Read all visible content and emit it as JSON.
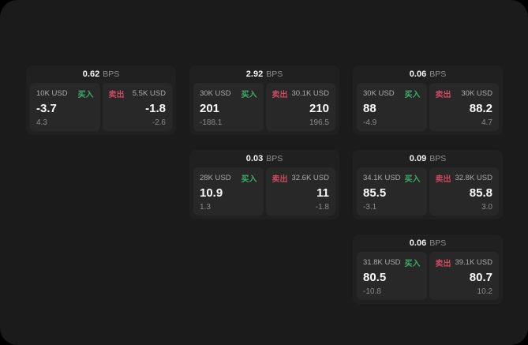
{
  "labels": {
    "buy": "买入",
    "sell": "卖出",
    "bps": "BPS"
  },
  "colors": {
    "buy_green": "#3eac68",
    "sell_red": "#ca4a60",
    "window_bg": "#1b1b1b",
    "card_bg": "#202020",
    "panel_bg": "#282828"
  },
  "cards": [
    {
      "bps": "0.62",
      "buy": {
        "amount": "10K USD",
        "value": "-3.7",
        "sub": "4.3"
      },
      "sell": {
        "amount": "5.5K USD",
        "value": "-1.8",
        "sub": "-2.6"
      }
    },
    {
      "bps": "2.92",
      "buy": {
        "amount": "30K USD",
        "value": "201",
        "sub": "-188.1"
      },
      "sell": {
        "amount": "30.1K USD",
        "value": "210",
        "sub": "196.5"
      }
    },
    {
      "bps": "0.06",
      "buy": {
        "amount": "30K USD",
        "value": "88",
        "sub": "-4.9"
      },
      "sell": {
        "amount": "30K USD",
        "value": "88.2",
        "sub": "4.7"
      }
    },
    {
      "bps": "0.03",
      "buy": {
        "amount": "28K USD",
        "value": "10.9",
        "sub": "1.3"
      },
      "sell": {
        "amount": "32.6K USD",
        "value": "11",
        "sub": "-1.8"
      }
    },
    {
      "bps": "0.09",
      "buy": {
        "amount": "34.1K USD",
        "value": "85.5",
        "sub": "-3.1"
      },
      "sell": {
        "amount": "32.8K USD",
        "value": "85.8",
        "sub": "3.0"
      }
    },
    {
      "bps": "0.06",
      "buy": {
        "amount": "31.8K USD",
        "value": "80.5",
        "sub": "-10.8"
      },
      "sell": {
        "amount": "39.1K USD",
        "value": "80.7",
        "sub": "10.2"
      }
    }
  ]
}
